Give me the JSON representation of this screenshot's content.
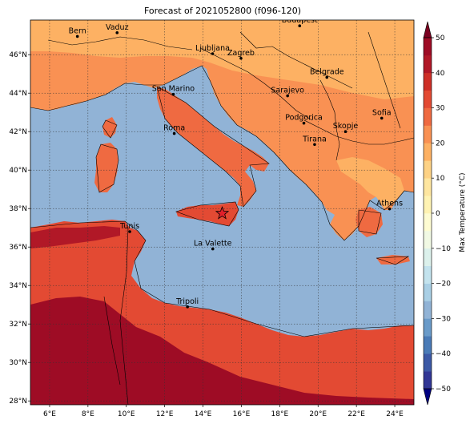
{
  "title": "Forecast of 2021052800 (f096-120)",
  "map": {
    "lon_range": [
      5,
      25
    ],
    "lat_range": [
      27.8,
      47.8
    ],
    "lon_ticks": [
      6,
      8,
      10,
      12,
      14,
      16,
      18,
      20,
      22,
      24
    ],
    "lat_ticks": [
      28,
      30,
      32,
      34,
      36,
      38,
      40,
      42,
      44,
      46
    ],
    "lon_tick_labels": [
      "6°E",
      "8°E",
      "10°E",
      "12°E",
      "14°E",
      "16°E",
      "18°E",
      "20°E",
      "22°E",
      "24°E"
    ],
    "lat_tick_labels": [
      "28°N",
      "30°N",
      "32°N",
      "34°N",
      "36°N",
      "38°N",
      "40°N",
      "42°N",
      "44°N",
      "46°N"
    ],
    "grid": true,
    "sea_color": "#91b3d6",
    "marker": {
      "name": "star",
      "lon": 15.0,
      "lat": 37.75,
      "color": "#e0202a"
    }
  },
  "cities": [
    {
      "name": "Bern",
      "lon": 7.45,
      "lat": 46.95
    },
    {
      "name": "Vaduz",
      "lon": 9.52,
      "lat": 47.14
    },
    {
      "name": "Budapest",
      "lon": 19.04,
      "lat": 47.5
    },
    {
      "name": "Ljubljana",
      "lon": 14.5,
      "lat": 46.05
    },
    {
      "name": "Zagreb",
      "lon": 15.98,
      "lat": 45.81
    },
    {
      "name": "San Marino",
      "lon": 12.45,
      "lat": 43.94
    },
    {
      "name": "Belgrade",
      "lon": 20.46,
      "lat": 44.82
    },
    {
      "name": "Sarajevo",
      "lon": 18.41,
      "lat": 43.86
    },
    {
      "name": "Sofia",
      "lon": 23.32,
      "lat": 42.7
    },
    {
      "name": "Podgorica",
      "lon": 19.26,
      "lat": 42.44
    },
    {
      "name": "Skopje",
      "lon": 21.43,
      "lat": 42.0
    },
    {
      "name": "Roma",
      "lon": 12.5,
      "lat": 41.9
    },
    {
      "name": "Tirana",
      "lon": 19.82,
      "lat": 41.33
    },
    {
      "name": "Athens",
      "lon": 23.73,
      "lat": 37.98
    },
    {
      "name": "Tunis",
      "lon": 10.18,
      "lat": 36.8
    },
    {
      "name": "La Valette",
      "lon": 14.51,
      "lat": 35.9
    },
    {
      "name": "Tripoli",
      "lon": 13.19,
      "lat": 32.89
    }
  ],
  "colorbar": {
    "label": "Max Temperature (°C)",
    "ticks": [
      50,
      40,
      30,
      20,
      10,
      0,
      -10,
      -20,
      -30,
      -40,
      -50
    ],
    "tick_labels": [
      "50",
      "40",
      "30",
      "20",
      "10",
      "0",
      "−10",
      "−20",
      "−30",
      "−40",
      "−50"
    ],
    "levels": [
      -50,
      -45,
      -40,
      -35,
      -30,
      -25,
      -20,
      -15,
      -10,
      -5,
      0,
      5,
      10,
      15,
      20,
      25,
      30,
      35,
      40,
      45,
      50
    ],
    "colors": [
      "#313695",
      "#3c59a6",
      "#4a7bb7",
      "#6a9bc9",
      "#91b3d6",
      "#a9cfe5",
      "#c3e3ee",
      "#dcf1ec",
      "#f1f9e4",
      "#fefcd2",
      "#fff3b3",
      "#fee6a0",
      "#fdd285",
      "#fdb163",
      "#f99153",
      "#ef6a41",
      "#e34a33",
      "#ce2f27",
      "#b11827",
      "#9e0c25"
    ]
  }
}
